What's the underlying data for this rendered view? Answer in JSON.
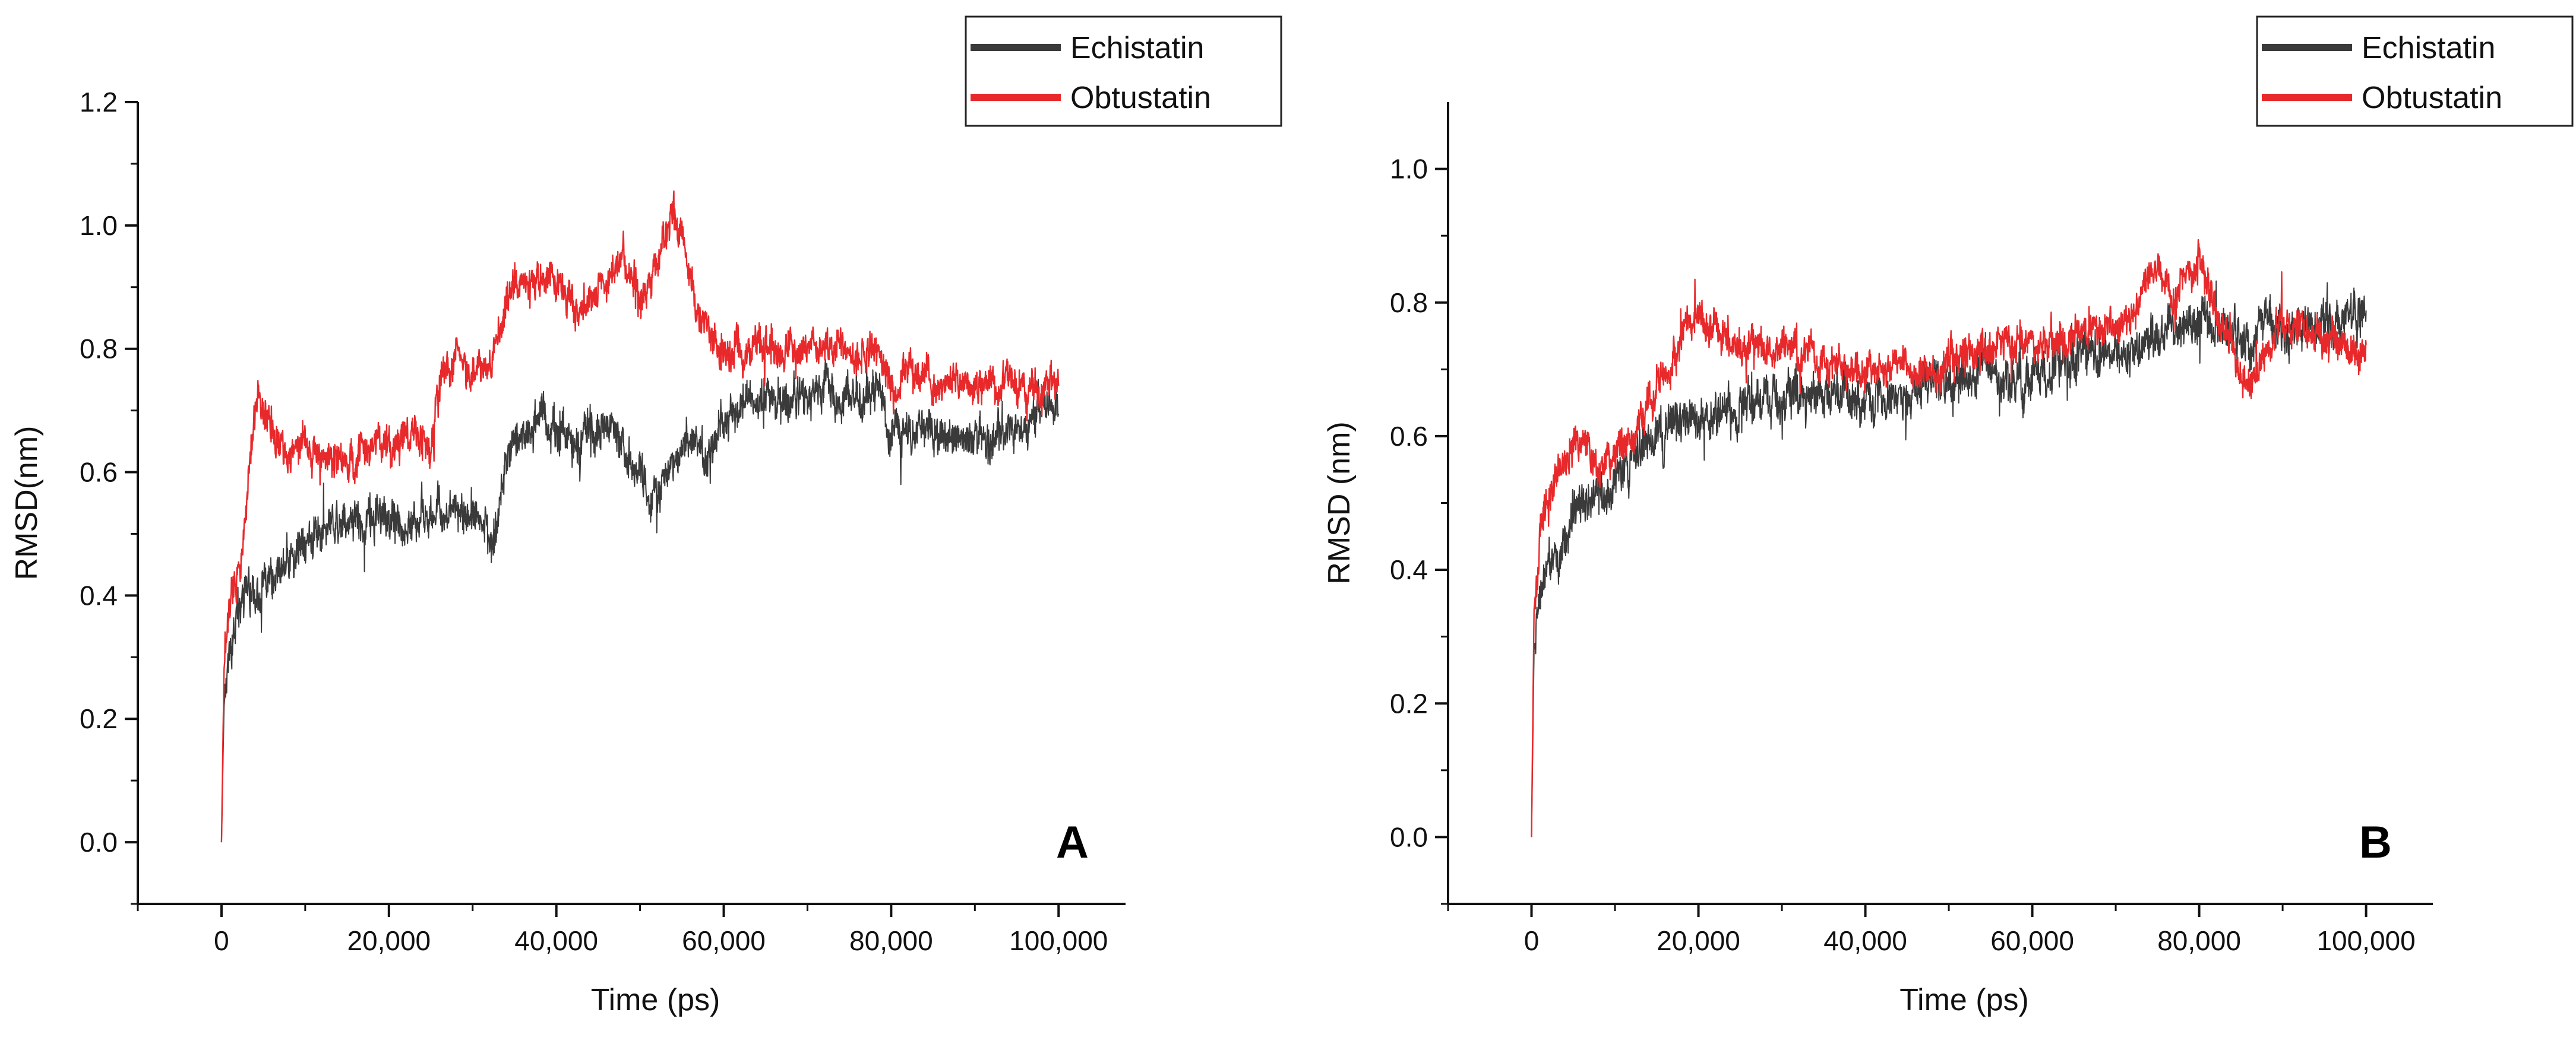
{
  "colors": {
    "echistatin": "#3a3a3a",
    "obtustatin": "#e8292b",
    "axis": "#111111",
    "background": "#ffffff"
  },
  "chart_data": [
    {
      "panel_label": "A",
      "type": "line",
      "title": "",
      "xlabel": "Time (ps)",
      "ylabel": "RMSD(nm)",
      "xlim": [
        -10000,
        108000
      ],
      "ylim": [
        -0.1,
        1.2
      ],
      "x_ticks": [
        0,
        20000,
        40000,
        60000,
        80000,
        100000
      ],
      "x_tick_labels": [
        "0",
        "20,000",
        "40,000",
        "60,000",
        "80,000",
        "100,000"
      ],
      "y_ticks": [
        0.0,
        0.2,
        0.4,
        0.6,
        0.8,
        1.0,
        1.2
      ],
      "y_tick_labels": [
        "0.0",
        "0.2",
        "0.4",
        "0.6",
        "0.8",
        "1.0",
        "1.2"
      ],
      "legend": [
        "Echistatin",
        "Obtustatin"
      ],
      "legend_placement": "top-right",
      "grid": false,
      "series": [
        {
          "name": "Echistatin",
          "color": "#3a3a3a",
          "noise": 0.028,
          "points": [
            [
              0,
              0.0
            ],
            [
              300,
              0.22
            ],
            [
              800,
              0.3
            ],
            [
              1500,
              0.36
            ],
            [
              3000,
              0.4
            ],
            [
              5000,
              0.41
            ],
            [
              7000,
              0.43
            ],
            [
              9000,
              0.47
            ],
            [
              12000,
              0.52
            ],
            [
              15000,
              0.53
            ],
            [
              20000,
              0.52
            ],
            [
              25000,
              0.53
            ],
            [
              29000,
              0.54
            ],
            [
              31000,
              0.52
            ],
            [
              32500,
              0.48
            ],
            [
              34000,
              0.62
            ],
            [
              36000,
              0.66
            ],
            [
              38000,
              0.7
            ],
            [
              40000,
              0.66
            ],
            [
              43000,
              0.64
            ],
            [
              46000,
              0.68
            ],
            [
              49000,
              0.62
            ],
            [
              51000,
              0.56
            ],
            [
              53000,
              0.6
            ],
            [
              56000,
              0.66
            ],
            [
              58000,
              0.62
            ],
            [
              60000,
              0.69
            ],
            [
              63000,
              0.72
            ],
            [
              66000,
              0.73
            ],
            [
              70000,
              0.72
            ],
            [
              75000,
              0.73
            ],
            [
              79000,
              0.72
            ],
            [
              80000,
              0.66
            ],
            [
              85000,
              0.66
            ],
            [
              90000,
              0.66
            ],
            [
              95000,
              0.67
            ],
            [
              100000,
              0.72
            ]
          ]
        },
        {
          "name": "Obtustatin",
          "color": "#e8292b",
          "noise": 0.024,
          "points": [
            [
              0,
              0.0
            ],
            [
              300,
              0.28
            ],
            [
              800,
              0.36
            ],
            [
              1500,
              0.42
            ],
            [
              2500,
              0.48
            ],
            [
              3500,
              0.64
            ],
            [
              4500,
              0.72
            ],
            [
              6000,
              0.66
            ],
            [
              8000,
              0.62
            ],
            [
              10000,
              0.66
            ],
            [
              12000,
              0.62
            ],
            [
              15000,
              0.62
            ],
            [
              18000,
              0.63
            ],
            [
              20000,
              0.64
            ],
            [
              23000,
              0.66
            ],
            [
              25000,
              0.64
            ],
            [
              26000,
              0.74
            ],
            [
              28000,
              0.8
            ],
            [
              30000,
              0.76
            ],
            [
              32000,
              0.78
            ],
            [
              34000,
              0.86
            ],
            [
              36000,
              0.9
            ],
            [
              38000,
              0.92
            ],
            [
              40000,
              0.92
            ],
            [
              43000,
              0.86
            ],
            [
              46000,
              0.9
            ],
            [
              48000,
              0.95
            ],
            [
              50000,
              0.88
            ],
            [
              52000,
              0.94
            ],
            [
              54000,
              1.02
            ],
            [
              55000,
              0.98
            ],
            [
              56000,
              0.9
            ],
            [
              58000,
              0.82
            ],
            [
              60000,
              0.78
            ],
            [
              63000,
              0.8
            ],
            [
              66000,
              0.8
            ],
            [
              70000,
              0.8
            ],
            [
              75000,
              0.8
            ],
            [
              79000,
              0.79
            ],
            [
              80000,
              0.74
            ],
            [
              82000,
              0.76
            ],
            [
              85000,
              0.75
            ],
            [
              88000,
              0.74
            ],
            [
              92000,
              0.74
            ],
            [
              96000,
              0.74
            ],
            [
              100000,
              0.74
            ]
          ]
        }
      ]
    },
    {
      "panel_label": "B",
      "type": "line",
      "title": "",
      "xlabel": "Time (ps)",
      "ylabel": "RMSD (nm)",
      "xlim": [
        -10000,
        108000
      ],
      "ylim": [
        -0.1,
        1.1
      ],
      "x_ticks": [
        0,
        20000,
        40000,
        60000,
        80000,
        100000
      ],
      "x_tick_labels": [
        "0",
        "20,000",
        "40,000",
        "60,000",
        "80,000",
        "100,000"
      ],
      "y_ticks": [
        0.0,
        0.2,
        0.4,
        0.6,
        0.8,
        1.0
      ],
      "y_tick_labels": [
        "0.0",
        "0.2",
        "0.4",
        "0.6",
        "0.8",
        "1.0"
      ],
      "legend": [
        "Echistatin",
        "Obtustatin"
      ],
      "legend_placement": "top-right",
      "grid": false,
      "series": [
        {
          "name": "Echistatin",
          "color": "#3a3a3a",
          "noise": 0.028,
          "points": [
            [
              0,
              0.0
            ],
            [
              300,
              0.28
            ],
            [
              1000,
              0.36
            ],
            [
              3000,
              0.42
            ],
            [
              6000,
              0.5
            ],
            [
              9000,
              0.52
            ],
            [
              12000,
              0.56
            ],
            [
              15000,
              0.6
            ],
            [
              18000,
              0.62
            ],
            [
              20000,
              0.63
            ],
            [
              25000,
              0.64
            ],
            [
              30000,
              0.66
            ],
            [
              35000,
              0.67
            ],
            [
              40000,
              0.66
            ],
            [
              45000,
              0.67
            ],
            [
              50000,
              0.68
            ],
            [
              55000,
              0.7
            ],
            [
              60000,
              0.68
            ],
            [
              65000,
              0.71
            ],
            [
              70000,
              0.72
            ],
            [
              75000,
              0.74
            ],
            [
              78000,
              0.76
            ],
            [
              80000,
              0.78
            ],
            [
              85000,
              0.74
            ],
            [
              90000,
              0.76
            ],
            [
              95000,
              0.76
            ],
            [
              100000,
              0.78
            ]
          ]
        },
        {
          "name": "Obtustatin",
          "color": "#e8292b",
          "noise": 0.022,
          "points": [
            [
              0,
              0.0
            ],
            [
              300,
              0.34
            ],
            [
              1000,
              0.44
            ],
            [
              2000,
              0.52
            ],
            [
              4000,
              0.56
            ],
            [
              6000,
              0.6
            ],
            [
              8000,
              0.56
            ],
            [
              10000,
              0.58
            ],
            [
              12000,
              0.6
            ],
            [
              14000,
              0.64
            ],
            [
              17000,
              0.72
            ],
            [
              19000,
              0.78
            ],
            [
              22000,
              0.75
            ],
            [
              25000,
              0.74
            ],
            [
              28000,
              0.72
            ],
            [
              31000,
              0.73
            ],
            [
              35000,
              0.71
            ],
            [
              38000,
              0.7
            ],
            [
              40000,
              0.7
            ],
            [
              44000,
              0.71
            ],
            [
              48000,
              0.7
            ],
            [
              52000,
              0.72
            ],
            [
              56000,
              0.74
            ],
            [
              60000,
              0.74
            ],
            [
              64000,
              0.74
            ],
            [
              68000,
              0.76
            ],
            [
              72000,
              0.78
            ],
            [
              75000,
              0.86
            ],
            [
              77000,
              0.8
            ],
            [
              80000,
              0.88
            ],
            [
              82000,
              0.78
            ],
            [
              84000,
              0.72
            ],
            [
              86000,
              0.68
            ],
            [
              88000,
              0.72
            ],
            [
              90000,
              0.78
            ],
            [
              93000,
              0.76
            ],
            [
              96000,
              0.74
            ],
            [
              100000,
              0.72
            ]
          ]
        }
      ]
    }
  ]
}
